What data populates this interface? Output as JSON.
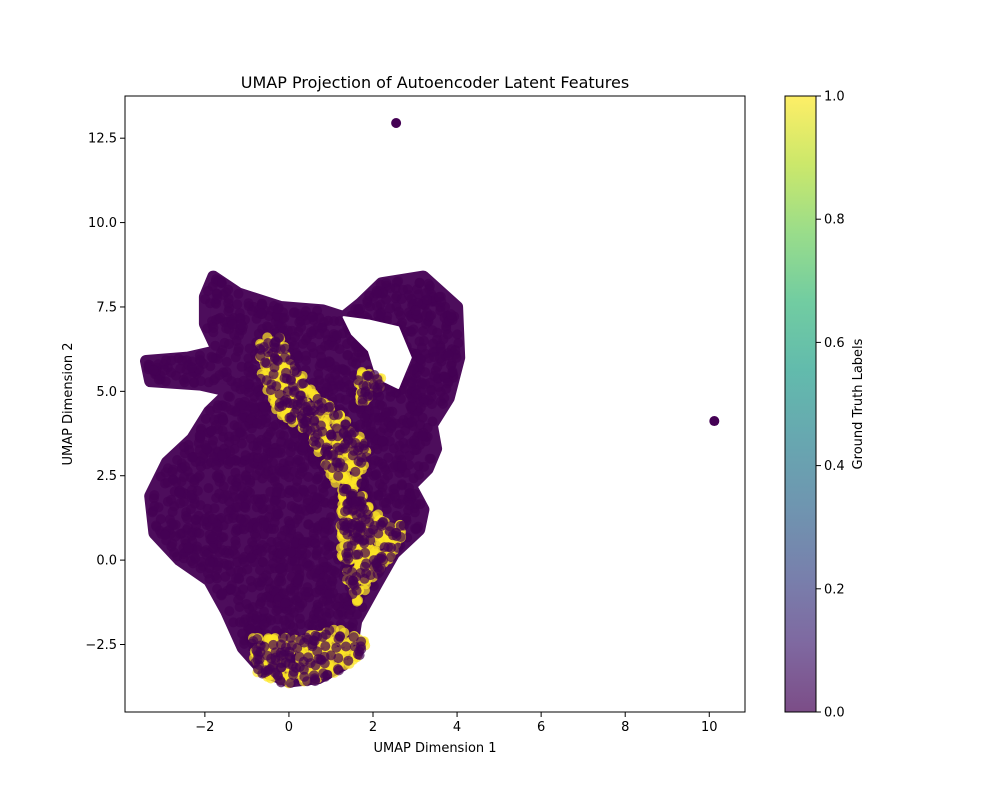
{
  "chart_data": {
    "type": "scatter",
    "title": "UMAP Projection of Autoencoder Latent Features",
    "xlabel": "UMAP Dimension 1",
    "ylabel": "UMAP Dimension 2",
    "xlim": [
      -3.9,
      10.85
    ],
    "ylim": [
      -4.5,
      13.75
    ],
    "grid": false,
    "x_ticks": [
      -2,
      0,
      2,
      4,
      6,
      8,
      10
    ],
    "x_tick_labels": [
      "−2",
      "0",
      "2",
      "4",
      "6",
      "8",
      "10"
    ],
    "y_ticks": [
      -2.5,
      0.0,
      2.5,
      5.0,
      7.5,
      10.0,
      12.5
    ],
    "y_tick_labels": [
      "−2.5",
      "0.0",
      "2.5",
      "5.0",
      "7.5",
      "10.0",
      "12.5"
    ],
    "colormap": "viridis",
    "point_alpha": 0.7,
    "colorbar": {
      "label": "Ground Truth Labels",
      "range": [
        0.0,
        1.0
      ],
      "ticks": [
        0.0,
        0.2,
        0.4,
        0.6,
        0.8,
        1.0
      ],
      "tick_labels": [
        "0.0",
        "0.2",
        "0.4",
        "0.6",
        "0.8",
        "1.0"
      ],
      "stops": [
        "#440154",
        "#482878",
        "#3e4a89",
        "#31688e",
        "#26828e",
        "#1f9e89",
        "#35b779",
        "#6ece58",
        "#b5de2b",
        "#fde725"
      ]
    },
    "class_colors": {
      "0": "#440154",
      "1": "#fde725"
    },
    "class_0_regions": [
      {
        "polygon": [
          [
            -1.8,
            8.4
          ],
          [
            -1.2,
            7.9
          ],
          [
            -0.2,
            7.5
          ],
          [
            0.8,
            7.4
          ],
          [
            1.3,
            7.2
          ],
          [
            1.7,
            7.6
          ],
          [
            2.2,
            8.2
          ],
          [
            3.2,
            8.4
          ],
          [
            4.0,
            7.5
          ],
          [
            4.05,
            6.0
          ],
          [
            3.8,
            4.8
          ],
          [
            3.4,
            4.0
          ],
          [
            3.5,
            3.3
          ],
          [
            3.3,
            2.7
          ],
          [
            2.9,
            2.2
          ],
          [
            3.2,
            1.5
          ],
          [
            3.1,
            0.9
          ],
          [
            2.5,
            0.2
          ],
          [
            2.0,
            -0.9
          ],
          [
            1.6,
            -1.8
          ],
          [
            1.5,
            -2.6
          ],
          [
            1.3,
            -3.1
          ],
          [
            0.7,
            -3.5
          ],
          [
            0.0,
            -3.6
          ],
          [
            -0.6,
            -3.3
          ],
          [
            -1.1,
            -2.6
          ],
          [
            -1.5,
            -1.5
          ],
          [
            -1.9,
            -0.6
          ],
          [
            -2.6,
            0.0
          ],
          [
            -3.2,
            0.8
          ],
          [
            -3.3,
            1.9
          ],
          [
            -2.9,
            2.9
          ],
          [
            -2.3,
            3.6
          ],
          [
            -1.9,
            4.4
          ],
          [
            -1.4,
            5.0
          ],
          [
            -2.1,
            5.2
          ],
          [
            -3.3,
            5.3
          ],
          [
            -3.4,
            5.9
          ],
          [
            -2.4,
            6.0
          ],
          [
            -1.7,
            6.2
          ],
          [
            -2.0,
            7.0
          ],
          [
            -2.0,
            7.8
          ]
        ],
        "n": 2000
      },
      {
        "polygon": [
          [
            1.3,
            7.2
          ],
          [
            1.9,
            7.1
          ],
          [
            2.6,
            6.9
          ],
          [
            2.9,
            6.0
          ],
          [
            2.6,
            5.1
          ],
          [
            2.1,
            5.4
          ],
          [
            1.9,
            6.2
          ],
          [
            1.5,
            6.7
          ]
        ],
        "n": 0
      }
    ],
    "class_1_regions": [
      {
        "polygon": [
          [
            -0.7,
            6.6
          ],
          [
            -0.2,
            6.6
          ],
          [
            0.6,
            5.0
          ],
          [
            1.3,
            4.2
          ],
          [
            1.9,
            3.4
          ],
          [
            1.8,
            2.2
          ],
          [
            1.7,
            1.0
          ],
          [
            1.2,
            2.0
          ],
          [
            0.8,
            3.0
          ],
          [
            0.4,
            3.8
          ],
          [
            -0.3,
            4.4
          ],
          [
            -0.7,
            5.4
          ]
        ],
        "n": 300
      },
      {
        "polygon": [
          [
            1.3,
            2.2
          ],
          [
            2.3,
            1.2
          ],
          [
            2.8,
            1.0
          ],
          [
            2.6,
            0.3
          ],
          [
            2.0,
            -0.6
          ],
          [
            1.6,
            -1.3
          ],
          [
            1.3,
            -0.5
          ],
          [
            1.2,
            0.8
          ]
        ],
        "n": 200
      },
      {
        "polygon": [
          [
            -0.9,
            -2.3
          ],
          [
            0.0,
            -2.3
          ],
          [
            1.2,
            -2.0
          ],
          [
            1.9,
            -2.4
          ],
          [
            1.6,
            -3.0
          ],
          [
            0.7,
            -3.6
          ],
          [
            -0.1,
            -3.7
          ],
          [
            -0.8,
            -3.3
          ]
        ],
        "n": 200
      },
      {
        "polygon": [
          [
            1.6,
            5.6
          ],
          [
            2.2,
            5.5
          ],
          [
            2.2,
            5.0
          ],
          [
            1.7,
            4.6
          ]
        ],
        "n": 40
      }
    ],
    "outliers": [
      {
        "x": 2.55,
        "y": 12.95,
        "label": 0
      },
      {
        "x": 10.12,
        "y": 4.12,
        "label": 0
      }
    ]
  }
}
